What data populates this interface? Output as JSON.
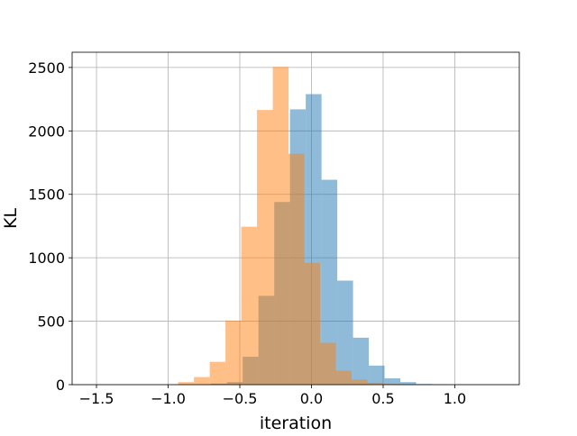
{
  "chart_data": {
    "type": "bar",
    "title": "",
    "xlabel": "iteration",
    "ylabel": "KL",
    "xlim": [
      -1.67,
      1.45
    ],
    "ylim": [
      0,
      2620
    ],
    "grid": true,
    "legend": "none",
    "xticks": [
      -1.5,
      -1.0,
      -0.5,
      0.0,
      0.5,
      1.0
    ],
    "xtick_labels": [
      "−1.5",
      "−1.0",
      "−0.5",
      "0.0",
      "0.5",
      "1.0"
    ],
    "yticks": [
      0,
      500,
      1000,
      1500,
      2000,
      2500
    ],
    "ytick_labels": [
      "0",
      "500",
      "1000",
      "1500",
      "2000",
      "2500"
    ],
    "series": [
      {
        "color": "#1f77b4",
        "alpha": 0.5,
        "bins": [
          {
            "x0": -0.81,
            "x1": -0.7,
            "count": 2
          },
          {
            "x0": -0.7,
            "x1": -0.59,
            "count": 8
          },
          {
            "x0": -0.59,
            "x1": -0.48,
            "count": 20
          },
          {
            "x0": -0.48,
            "x1": -0.37,
            "count": 220
          },
          {
            "x0": -0.37,
            "x1": -0.26,
            "count": 700
          },
          {
            "x0": -0.26,
            "x1": -0.15,
            "count": 1440
          },
          {
            "x0": -0.15,
            "x1": -0.04,
            "count": 2170
          },
          {
            "x0": -0.04,
            "x1": 0.07,
            "count": 2290
          },
          {
            "x0": 0.07,
            "x1": 0.18,
            "count": 1615
          },
          {
            "x0": 0.18,
            "x1": 0.29,
            "count": 820
          },
          {
            "x0": 0.29,
            "x1": 0.4,
            "count": 370
          },
          {
            "x0": 0.4,
            "x1": 0.51,
            "count": 150
          },
          {
            "x0": 0.51,
            "x1": 0.62,
            "count": 50
          },
          {
            "x0": 0.62,
            "x1": 0.73,
            "count": 20
          },
          {
            "x0": 0.73,
            "x1": 0.84,
            "count": 5
          },
          {
            "x0": 0.84,
            "x1": 0.95,
            "count": 2
          }
        ]
      },
      {
        "color": "#ff7f0e",
        "alpha": 0.5,
        "bins": [
          {
            "x0": -0.93,
            "x1": -0.82,
            "count": 20
          },
          {
            "x0": -0.82,
            "x1": -0.71,
            "count": 60
          },
          {
            "x0": -0.71,
            "x1": -0.6,
            "count": 180
          },
          {
            "x0": -0.6,
            "x1": -0.49,
            "count": 505
          },
          {
            "x0": -0.49,
            "x1": -0.38,
            "count": 1245
          },
          {
            "x0": -0.38,
            "x1": -0.27,
            "count": 2165
          },
          {
            "x0": -0.27,
            "x1": -0.16,
            "count": 2505
          },
          {
            "x0": -0.16,
            "x1": -0.05,
            "count": 1820
          },
          {
            "x0": -0.05,
            "x1": 0.06,
            "count": 960
          },
          {
            "x0": 0.06,
            "x1": 0.17,
            "count": 330
          },
          {
            "x0": 0.17,
            "x1": 0.28,
            "count": 110
          },
          {
            "x0": 0.28,
            "x1": 0.39,
            "count": 40
          },
          {
            "x0": 0.39,
            "x1": 0.5,
            "count": 15
          },
          {
            "x0": 0.5,
            "x1": 0.61,
            "count": 5
          }
        ]
      }
    ]
  }
}
